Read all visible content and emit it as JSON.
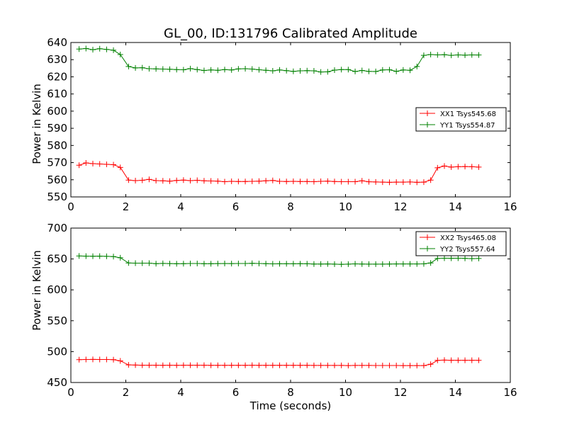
{
  "chart_data": [
    {
      "type": "line",
      "title": "GL_00, ID:131796 Calibrated Amplitude",
      "xlabel": "",
      "ylabel": "Power in Kelvin",
      "xlim": [
        0,
        16
      ],
      "ylim": [
        550,
        640
      ],
      "xticks": [
        "0",
        "2",
        "4",
        "6",
        "8",
        "10",
        "12",
        "14",
        "16"
      ],
      "yticks": [
        "550",
        "560",
        "570",
        "580",
        "590",
        "600",
        "610",
        "620",
        "630",
        "640"
      ],
      "grid": false,
      "legend_position": "center-right",
      "x": [
        0.3,
        0.55,
        0.8,
        1.05,
        1.3,
        1.55,
        1.8,
        2.1,
        2.35,
        2.6,
        2.85,
        3.1,
        3.35,
        3.6,
        3.85,
        4.1,
        4.35,
        4.6,
        4.85,
        5.1,
        5.35,
        5.6,
        5.85,
        6.1,
        6.35,
        6.6,
        6.85,
        7.1,
        7.35,
        7.6,
        7.85,
        8.1,
        8.35,
        8.6,
        8.85,
        9.1,
        9.35,
        9.6,
        9.85,
        10.1,
        10.35,
        10.6,
        10.85,
        11.1,
        11.35,
        11.6,
        11.85,
        12.1,
        12.35,
        12.6,
        12.85,
        13.1,
        13.35,
        13.6,
        13.85,
        14.1,
        14.35,
        14.6,
        14.85
      ],
      "series": [
        {
          "name": "XX1 Tsys545.68",
          "color": "#ff0000",
          "values": [
            568.5,
            569.8,
            569.4,
            569.2,
            569.0,
            568.8,
            567.2,
            559.8,
            559.5,
            559.7,
            560.2,
            559.5,
            559.4,
            559.2,
            559.6,
            559.8,
            559.5,
            559.7,
            559.4,
            559.3,
            559.2,
            558.9,
            559.1,
            559.0,
            559.0,
            559.1,
            559.2,
            559.4,
            559.6,
            559.1,
            559.0,
            559.1,
            559.0,
            559.0,
            558.9,
            559.1,
            559.2,
            559.0,
            558.9,
            558.9,
            558.9,
            559.4,
            558.8,
            558.7,
            558.6,
            558.5,
            558.6,
            558.6,
            558.7,
            558.5,
            558.6,
            559.8,
            567.0,
            568.0,
            567.4,
            567.6,
            567.7,
            567.6,
            567.4
          ]
        },
        {
          "name": "YY1 Tsys554.87",
          "color": "#008000",
          "values": [
            636.2,
            636.5,
            635.8,
            636.4,
            636.0,
            635.5,
            633.0,
            626.0,
            625.2,
            625.3,
            624.7,
            624.6,
            624.5,
            624.4,
            624.2,
            624.1,
            624.8,
            624.2,
            623.7,
            624.0,
            623.8,
            624.2,
            624.0,
            624.6,
            624.7,
            624.5,
            624.1,
            623.8,
            623.5,
            624.0,
            623.6,
            623.2,
            623.5,
            623.6,
            623.5,
            622.8,
            622.9,
            623.9,
            624.2,
            624.2,
            623.1,
            623.7,
            623.2,
            623.1,
            624.0,
            624.1,
            623.2,
            624.0,
            623.8,
            626.0,
            632.5,
            633.0,
            632.8,
            632.9,
            632.5,
            632.8,
            632.6,
            632.8,
            632.7
          ]
        }
      ]
    },
    {
      "type": "line",
      "title": "",
      "xlabel": "Time (seconds)",
      "ylabel": "Power in Kelvin",
      "xlim": [
        0,
        16
      ],
      "ylim": [
        450,
        700
      ],
      "xticks": [
        "0",
        "2",
        "4",
        "6",
        "8",
        "10",
        "12",
        "14",
        "16"
      ],
      "yticks": [
        "450",
        "500",
        "550",
        "600",
        "650",
        "700"
      ],
      "grid": false,
      "legend_position": "top-right",
      "x": [
        0.3,
        0.55,
        0.8,
        1.05,
        1.3,
        1.55,
        1.8,
        2.1,
        2.35,
        2.6,
        2.85,
        3.1,
        3.35,
        3.6,
        3.85,
        4.1,
        4.35,
        4.6,
        4.85,
        5.1,
        5.35,
        5.6,
        5.85,
        6.1,
        6.35,
        6.6,
        6.85,
        7.1,
        7.35,
        7.6,
        7.85,
        8.1,
        8.35,
        8.6,
        8.85,
        9.1,
        9.35,
        9.6,
        9.85,
        10.1,
        10.35,
        10.6,
        10.85,
        11.1,
        11.35,
        11.6,
        11.85,
        12.1,
        12.35,
        12.6,
        12.85,
        13.1,
        13.35,
        13.6,
        13.85,
        14.1,
        14.35,
        14.6,
        14.85
      ],
      "series": [
        {
          "name": "XX2 Tsys465.08",
          "color": "#ff0000",
          "values": [
            487,
            487.2,
            487.4,
            487.3,
            487.2,
            487.0,
            485.0,
            478.5,
            478.3,
            478.0,
            478.0,
            478.0,
            477.8,
            477.9,
            477.8,
            477.9,
            478.0,
            478.0,
            477.9,
            477.8,
            477.8,
            477.8,
            477.8,
            477.8,
            477.8,
            477.9,
            477.8,
            477.8,
            477.8,
            477.8,
            477.8,
            477.8,
            477.8,
            477.8,
            477.6,
            477.6,
            477.6,
            477.6,
            477.6,
            477.4,
            477.6,
            477.6,
            477.6,
            477.5,
            477.5,
            477.5,
            477.5,
            477.4,
            477.4,
            477.4,
            477.4,
            479.5,
            485.8,
            486.3,
            486.0,
            486.0,
            486.0,
            486.0,
            486.0
          ]
        },
        {
          "name": "YY2 Tsys557.64",
          "color": "#008000",
          "values": [
            654.9,
            654.5,
            654.4,
            654.5,
            654.3,
            653.8,
            652.0,
            643.5,
            643.2,
            643.3,
            643.2,
            642.4,
            642.8,
            642.5,
            642.3,
            642.4,
            642.6,
            642.6,
            642.3,
            642.3,
            642.5,
            642.7,
            642.5,
            642.6,
            642.7,
            642.9,
            642.6,
            642.4,
            642.1,
            642.2,
            642.2,
            642.2,
            642.3,
            642.2,
            641.8,
            641.8,
            641.9,
            641.7,
            641.3,
            641.6,
            642.1,
            641.8,
            641.7,
            641.7,
            641.7,
            641.8,
            641.9,
            642.0,
            642.0,
            641.9,
            642.1,
            643.5,
            650.8,
            651.2,
            651.1,
            651.3,
            651.0,
            650.5,
            650.8
          ]
        }
      ]
    }
  ]
}
